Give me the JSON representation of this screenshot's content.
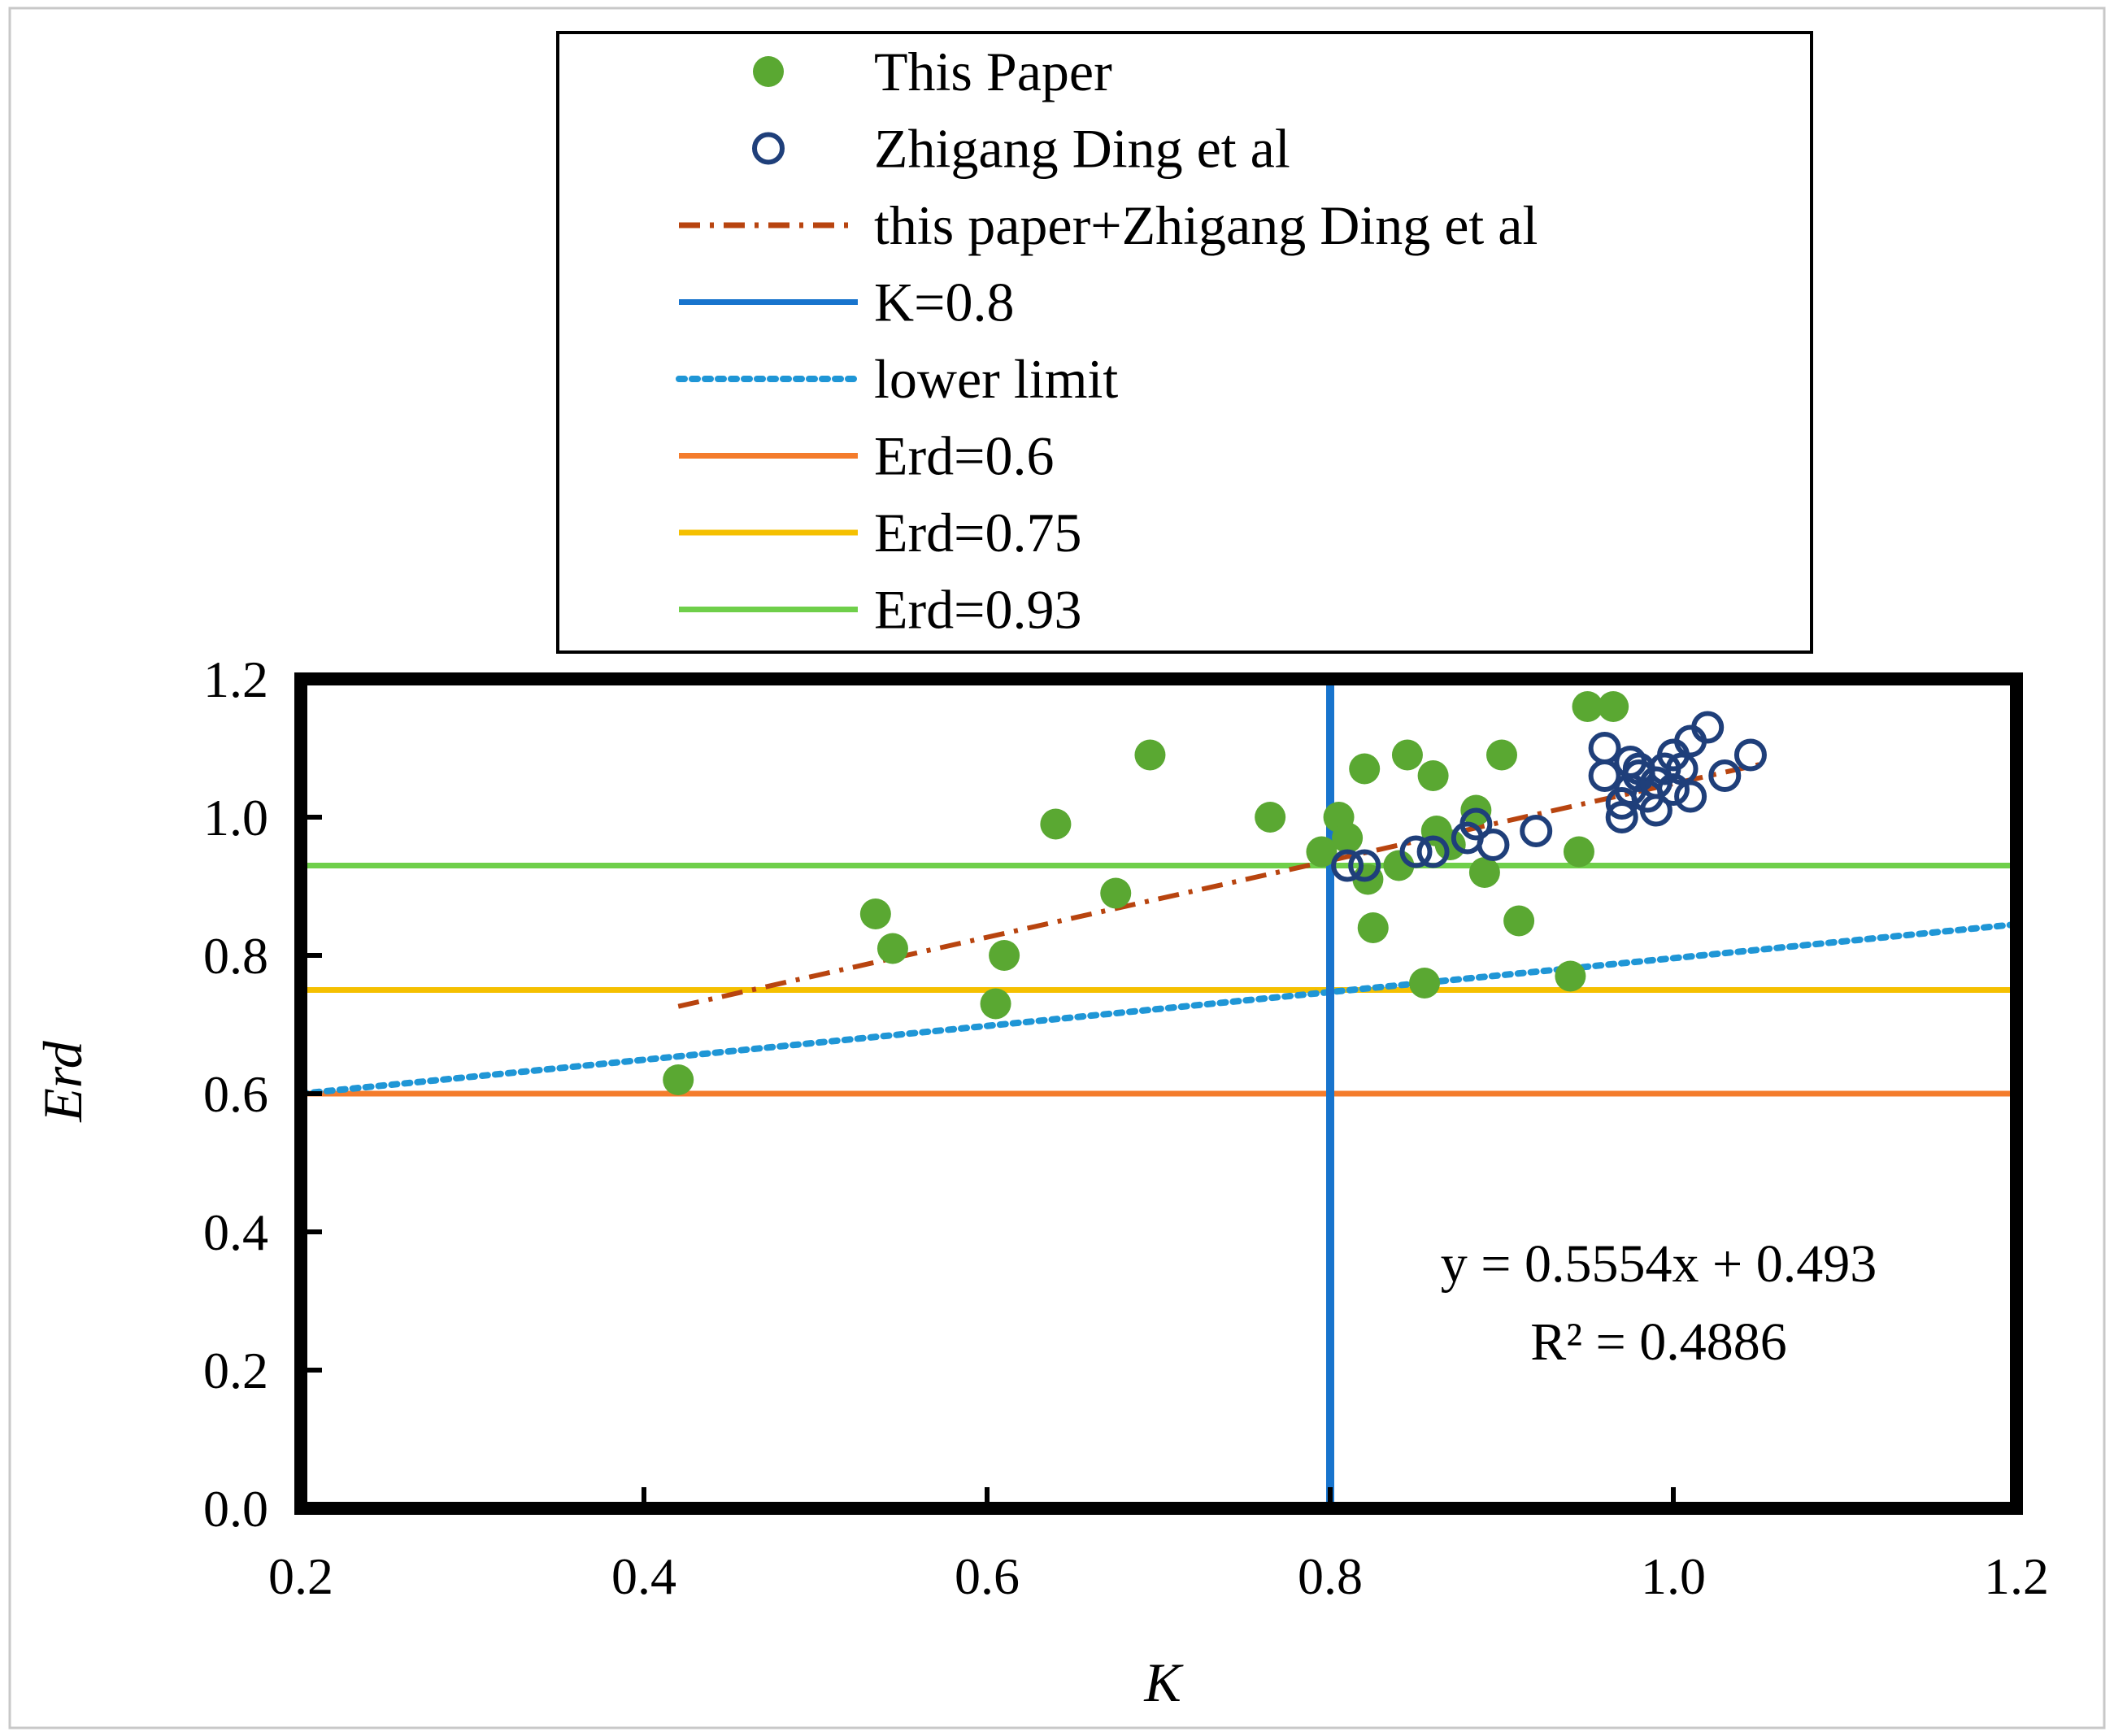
{
  "chart_data": {
    "type": "scatter",
    "xlabel": "K",
    "ylabel": "Erd",
    "xlim": [
      0.2,
      1.2
    ],
    "ylim": [
      0.0,
      1.2
    ],
    "x_ticks": [
      "0.2",
      "0.4",
      "0.6",
      "0.8",
      "1.0",
      "1.2"
    ],
    "y_ticks": [
      "0.0",
      "0.2",
      "0.4",
      "0.6",
      "0.8",
      "1.0",
      "1.2"
    ],
    "legend_position": "top-center",
    "legend": [
      {
        "label": "This Paper",
        "kind": "filled-marker",
        "color": "#5aa832"
      },
      {
        "label": "Zhigang Ding et al",
        "kind": "open-marker",
        "color": "#1f3f7a"
      },
      {
        "label": "this paper+Zhigang Ding et al",
        "kind": "dashdot-line",
        "color": "#b8440f"
      },
      {
        "label": "K=0.8",
        "kind": "solid-line",
        "color": "#1874cd"
      },
      {
        "label": "lower limit",
        "kind": "dotted-line",
        "color": "#1f96d6"
      },
      {
        "label": "Erd=0.6",
        "kind": "solid-line",
        "color": "#f47c2c"
      },
      {
        "label": "Erd=0.75",
        "kind": "solid-line",
        "color": "#f5c000"
      },
      {
        "label": "Erd=0.93",
        "kind": "solid-line",
        "color": "#6fcf4a"
      }
    ],
    "series": [
      {
        "name": "This Paper",
        "x": [
          0.42,
          0.535,
          0.545,
          0.605,
          0.61,
          0.64,
          0.675,
          0.695,
          0.765,
          0.795,
          0.805,
          0.81,
          0.82,
          0.822,
          0.825,
          0.84,
          0.845,
          0.855,
          0.86,
          0.862,
          0.87,
          0.885,
          0.89,
          0.9,
          0.91,
          0.94,
          0.945,
          0.95,
          0.965
        ],
        "y": [
          0.62,
          0.86,
          0.81,
          0.73,
          0.8,
          0.99,
          0.89,
          1.09,
          1.0,
          0.95,
          1.0,
          0.97,
          1.07,
          0.91,
          0.84,
          0.93,
          1.09,
          0.76,
          1.06,
          0.98,
          0.96,
          1.01,
          0.92,
          1.09,
          0.85,
          0.77,
          0.95,
          1.16,
          1.16
        ]
      },
      {
        "name": "Zhigang Ding et al",
        "x": [
          0.81,
          0.82,
          0.85,
          0.86,
          0.88,
          0.885,
          0.895,
          0.92,
          0.96,
          0.96,
          0.97,
          0.97,
          0.975,
          0.975,
          0.98,
          0.98,
          0.985,
          0.99,
          0.99,
          0.995,
          1.0,
          1.0,
          1.005,
          1.01,
          1.01,
          1.02,
          1.03,
          1.045
        ],
        "y": [
          0.93,
          0.93,
          0.95,
          0.95,
          0.97,
          0.99,
          0.96,
          0.98,
          1.06,
          1.1,
          1.0,
          1.02,
          1.04,
          1.08,
          1.06,
          1.07,
          1.03,
          1.01,
          1.05,
          1.07,
          1.04,
          1.09,
          1.07,
          1.03,
          1.11,
          1.13,
          1.06,
          1.09
        ]
      }
    ],
    "reference_lines": {
      "vertical_K": 0.8,
      "horizontal_Erd": [
        0.6,
        0.75,
        0.93
      ],
      "lower_limit": {
        "x1": 0.2,
        "y1": 0.6,
        "x2": 1.2,
        "y2": 0.845
      }
    },
    "trendline": {
      "slope": 0.5554,
      "intercept": 0.493,
      "x_range": [
        0.42,
        1.05
      ],
      "equation": "y = 0.5554x + 0.493",
      "r_squared": "R² = 0.4886"
    }
  }
}
